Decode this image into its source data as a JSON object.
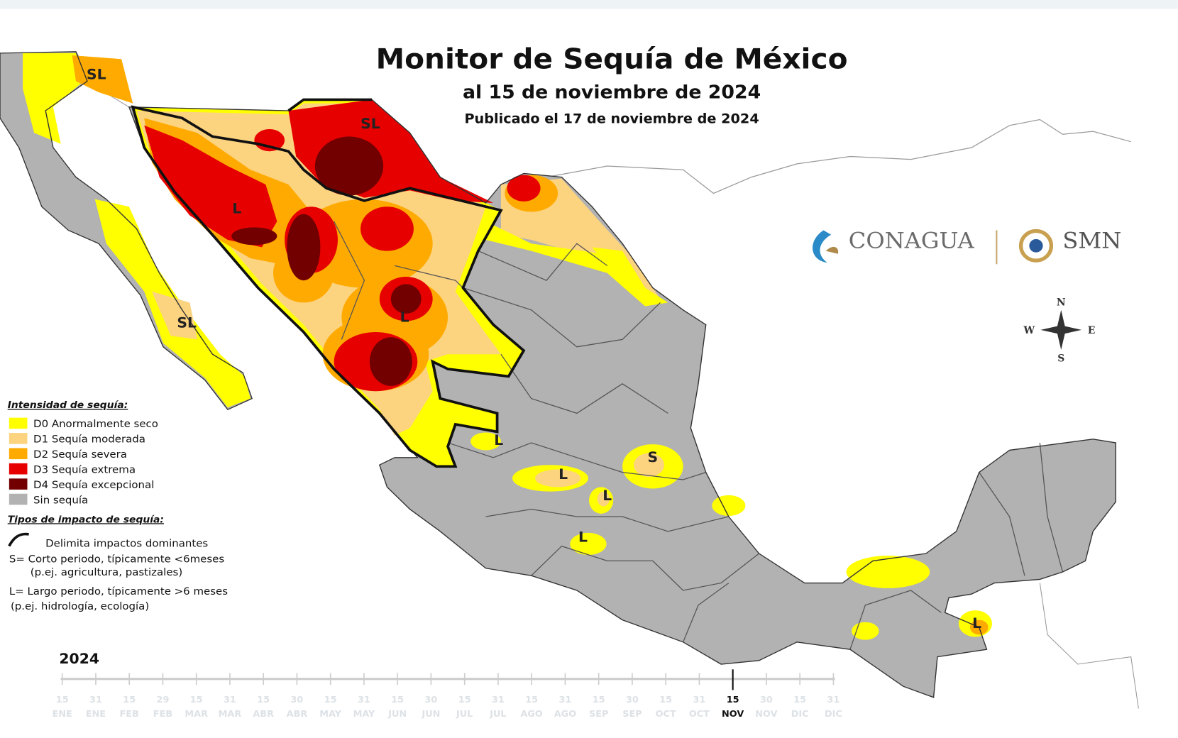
{
  "header": {
    "title": "Monitor de Sequía de México",
    "subtitle": "al 15 de noviembre de 2024",
    "published": "Publicado el 17 de noviembre de 2024"
  },
  "logos": {
    "conagua": "CONAGUA",
    "smn": "SMN"
  },
  "compass": {
    "north": "N",
    "south": "S",
    "east": "E",
    "west": "W"
  },
  "legend": {
    "heading": "Intensidad de sequía:",
    "items": [
      {
        "label": "D0 Anormalmente seco",
        "color": "#ffff00"
      },
      {
        "label": "D1 Sequía moderada",
        "color": "#fcd37f"
      },
      {
        "label": "D2 Sequía severa",
        "color": "#ffaa00"
      },
      {
        "label": "D3 Sequía extrema",
        "color": "#e60000"
      },
      {
        "label": "D4 Sequía excepcional",
        "color": "#730000"
      },
      {
        "label": "Sin sequía",
        "color": "#b2b2b2"
      }
    ]
  },
  "impacts": {
    "heading": "Tipos de impacto de sequía:",
    "boundary": "Delimita impactos dominantes",
    "short": "S= Corto periodo, típicamente <6meses",
    "short_examples": "(p.ej. agricultura, pastizales)",
    "long": "L= Largo periodo, típicamente >6 meses",
    "long_examples": "(p.ej. hidrología, ecología)"
  },
  "map_labels": [
    "SL",
    "SL",
    "SL",
    "L",
    "L",
    "L",
    "S",
    "L",
    "L",
    "L",
    "L"
  ],
  "timeline": {
    "year": "2024",
    "ticks": [
      {
        "day": "15",
        "month": "ENE"
      },
      {
        "day": "31",
        "month": "ENE"
      },
      {
        "day": "15",
        "month": "FEB"
      },
      {
        "day": "29",
        "month": "FEB"
      },
      {
        "day": "15",
        "month": "MAR"
      },
      {
        "day": "31",
        "month": "MAR"
      },
      {
        "day": "15",
        "month": "ABR"
      },
      {
        "day": "30",
        "month": "ABR"
      },
      {
        "day": "15",
        "month": "MAY"
      },
      {
        "day": "31",
        "month": "MAY"
      },
      {
        "day": "15",
        "month": "JUN"
      },
      {
        "day": "30",
        "month": "JUN"
      },
      {
        "day": "15",
        "month": "JUL"
      },
      {
        "day": "31",
        "month": "JUL"
      },
      {
        "day": "15",
        "month": "AGO"
      },
      {
        "day": "31",
        "month": "AGO"
      },
      {
        "day": "15",
        "month": "SEP"
      },
      {
        "day": "30",
        "month": "SEP"
      },
      {
        "day": "15",
        "month": "OCT"
      },
      {
        "day": "31",
        "month": "OCT"
      },
      {
        "day": "15",
        "month": "NOV",
        "current": true
      },
      {
        "day": "30",
        "month": "NOV"
      },
      {
        "day": "15",
        "month": "DIC"
      },
      {
        "day": "31",
        "month": "DIC"
      }
    ]
  }
}
